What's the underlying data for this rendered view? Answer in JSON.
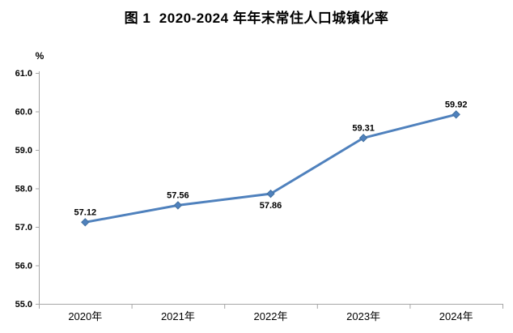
{
  "title": "图 1  2020-2024 年年末常住人口城镇化率",
  "chart_data": {
    "type": "line",
    "title": "图 1  2020-2024 年年末常住人口城镇化率",
    "unit_label": "%",
    "categories": [
      "2020年",
      "2021年",
      "2022年",
      "2023年",
      "2024年"
    ],
    "series": [
      {
        "name": "年末常住人口城镇化率",
        "values": [
          57.12,
          57.56,
          57.86,
          59.31,
          59.92
        ]
      }
    ],
    "data_labels": [
      "57.12",
      "57.56",
      "57.86",
      "59.31",
      "59.92"
    ],
    "data_label_positions": [
      "above",
      "above",
      "below",
      "above",
      "above"
    ],
    "ylim": [
      55.0,
      61.0
    ],
    "y_tick_step": 1.0,
    "y_tick_labels": [
      "55.0",
      "56.0",
      "57.0",
      "58.0",
      "59.0",
      "60.0",
      "61.0"
    ],
    "grid": false,
    "legend": "none",
    "colors": {
      "line": "#4F81BD",
      "marker_fill": "#4F81BD",
      "marker_edge": "#41709F",
      "axis": "#A6A6A6",
      "text": "#000000"
    }
  }
}
